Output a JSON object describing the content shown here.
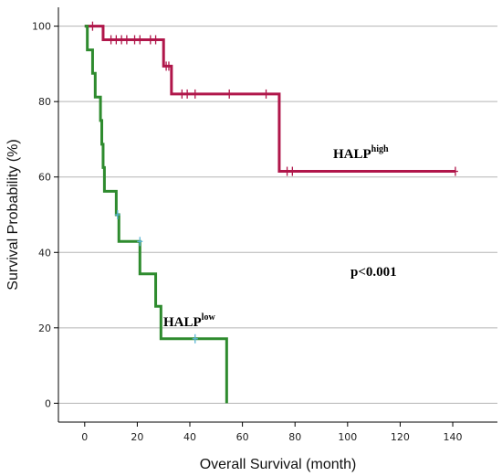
{
  "chart_data": {
    "type": "line",
    "title": "",
    "xlabel": "Overall Survival (month)",
    "ylabel": "Survival Probability (%)",
    "xlim": [
      -10,
      157
    ],
    "ylim": [
      -5,
      105
    ],
    "xticks": [
      0,
      20,
      40,
      60,
      80,
      100,
      120,
      140
    ],
    "yticks": [
      0,
      20,
      40,
      60,
      80,
      100
    ],
    "grid": "horizontal",
    "annotation": "p<0.001",
    "series": [
      {
        "name": "HALP",
        "name_sup": "high",
        "color": "#b0164a",
        "x": [
          0,
          7,
          30,
          33,
          74,
          141
        ],
        "y": [
          100,
          96.4,
          89.4,
          82,
          61.5,
          61.5
        ],
        "censored": [
          {
            "x": 3,
            "y": 100
          },
          {
            "x": 10,
            "y": 96.4
          },
          {
            "x": 12,
            "y": 96.4
          },
          {
            "x": 14,
            "y": 96.4
          },
          {
            "x": 16,
            "y": 96.4
          },
          {
            "x": 19,
            "y": 96.4
          },
          {
            "x": 21,
            "y": 96.4
          },
          {
            "x": 25,
            "y": 96.4
          },
          {
            "x": 27,
            "y": 96.4
          },
          {
            "x": 31,
            "y": 89.4
          },
          {
            "x": 32,
            "y": 89.4
          },
          {
            "x": 37,
            "y": 82
          },
          {
            "x": 39,
            "y": 82
          },
          {
            "x": 42,
            "y": 82
          },
          {
            "x": 55,
            "y": 82
          },
          {
            "x": 69,
            "y": 82
          },
          {
            "x": 77,
            "y": 61.5
          },
          {
            "x": 79,
            "y": 61.5
          },
          {
            "x": 141,
            "y": 61.5
          }
        ]
      },
      {
        "name": "HALP",
        "name_sup": "low",
        "color": "#2e8b2e",
        "x": [
          0,
          1,
          3,
          4,
          6,
          6.5,
          7,
          7.5,
          12,
          13,
          21,
          27,
          29,
          54
        ],
        "y": [
          100,
          93.7,
          87.5,
          81.2,
          75,
          68.7,
          62.5,
          56.2,
          50,
          42.9,
          34.3,
          25.7,
          17.1,
          0
        ],
        "censored": [
          {
            "x": 12.5,
            "y": 50
          },
          {
            "x": 21,
            "y": 42.9
          },
          {
            "x": 42,
            "y": 17.1
          }
        ],
        "censor_color": "#5ab4d6"
      }
    ]
  }
}
